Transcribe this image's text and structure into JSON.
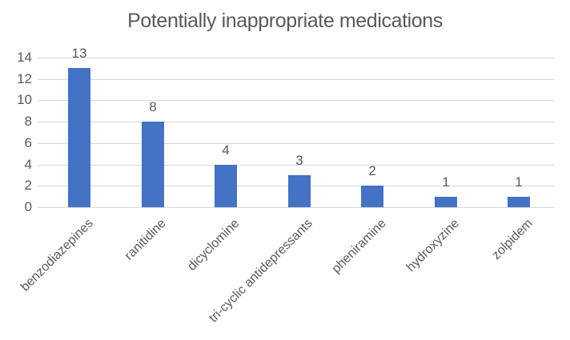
{
  "chart_data": {
    "type": "bar",
    "title": "Potentially inappropriate medications",
    "categories": [
      "benzodiazepines",
      "ranitidine",
      "dicyclomine",
      "tri-cyclic antidepressants",
      "pheniramine",
      "hydroxyzine",
      "zolpidem"
    ],
    "values": [
      13,
      8,
      4,
      3,
      2,
      1,
      1
    ],
    "data_labels": [
      "13",
      "8",
      "4",
      "3",
      "2",
      "1",
      "1"
    ],
    "xlabel": "",
    "ylabel": "",
    "ylim": [
      0,
      14
    ],
    "yticks": [
      0,
      2,
      4,
      6,
      8,
      10,
      12,
      14
    ],
    "grid": "horizontal",
    "legend": "none",
    "label_rotation_deg": 45,
    "colors": {
      "bar": "#4472C4",
      "gridline": "#D9D9D9",
      "axis_text": "#595959",
      "title_text": "#595959",
      "background": "#FFFFFF"
    }
  }
}
